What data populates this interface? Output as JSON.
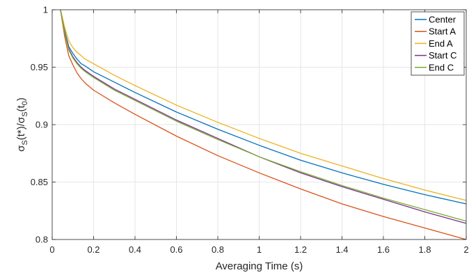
{
  "chart_data": {
    "type": "line",
    "title": "",
    "xlabel": "Averaging Time (s)",
    "ylabel": {
      "sigma1": "σ",
      "sub1": "S",
      "mid": "(t*)/",
      "sigma2": "σ",
      "sub2": "S",
      "t": "(t",
      "sub3": "0",
      "close": ")"
    },
    "xlim": [
      0,
      2
    ],
    "ylim": [
      0.8,
      1
    ],
    "xticks": [
      0,
      0.2,
      0.4,
      0.6,
      0.8,
      1,
      1.2,
      1.4,
      1.6,
      1.8,
      2
    ],
    "xtick_labels": [
      "0",
      "0.2",
      "0.4",
      "0.6",
      "0.8",
      "1",
      "1.2",
      "1.4",
      "1.6",
      "1.8",
      "2"
    ],
    "yticks": [
      0.8,
      0.85,
      0.9,
      0.95,
      1
    ],
    "ytick_labels": [
      "0.8",
      "0.85",
      "0.9",
      "0.95",
      "1"
    ],
    "grid": true,
    "legend_position": "top-right",
    "x": [
      0.04,
      0.06,
      0.08,
      0.1,
      0.12,
      0.14,
      0.16,
      0.2,
      0.3,
      0.4,
      0.6,
      0.8,
      1.0,
      1.2,
      1.4,
      1.6,
      1.8,
      2.0
    ],
    "series": [
      {
        "name": "Center",
        "color": "#0072BD",
        "values": [
          1.0,
          0.982,
          0.968,
          0.962,
          0.957,
          0.953,
          0.951,
          0.946,
          0.937,
          0.928,
          0.911,
          0.896,
          0.882,
          0.869,
          0.858,
          0.848,
          0.839,
          0.831
        ]
      },
      {
        "name": "Start A",
        "color": "#D95319",
        "values": [
          1.0,
          0.977,
          0.96,
          0.952,
          0.945,
          0.94,
          0.936,
          0.93,
          0.919,
          0.909,
          0.89,
          0.873,
          0.858,
          0.844,
          0.831,
          0.82,
          0.81,
          0.8
        ]
      },
      {
        "name": "End A",
        "color": "#EDB120",
        "values": [
          1.0,
          0.985,
          0.973,
          0.967,
          0.963,
          0.96,
          0.957,
          0.953,
          0.943,
          0.934,
          0.917,
          0.902,
          0.888,
          0.875,
          0.864,
          0.853,
          0.843,
          0.834
        ]
      },
      {
        "name": "Start C",
        "color": "#7E2F8E",
        "values": [
          1.0,
          0.981,
          0.966,
          0.959,
          0.954,
          0.95,
          0.947,
          0.942,
          0.931,
          0.922,
          0.904,
          0.888,
          0.872,
          0.858,
          0.846,
          0.835,
          0.824,
          0.814
        ]
      },
      {
        "name": "End C",
        "color": "#77AC30",
        "values": [
          1.0,
          0.98,
          0.965,
          0.958,
          0.953,
          0.949,
          0.946,
          0.941,
          0.93,
          0.921,
          0.903,
          0.887,
          0.872,
          0.859,
          0.847,
          0.836,
          0.826,
          0.816
        ]
      }
    ]
  }
}
